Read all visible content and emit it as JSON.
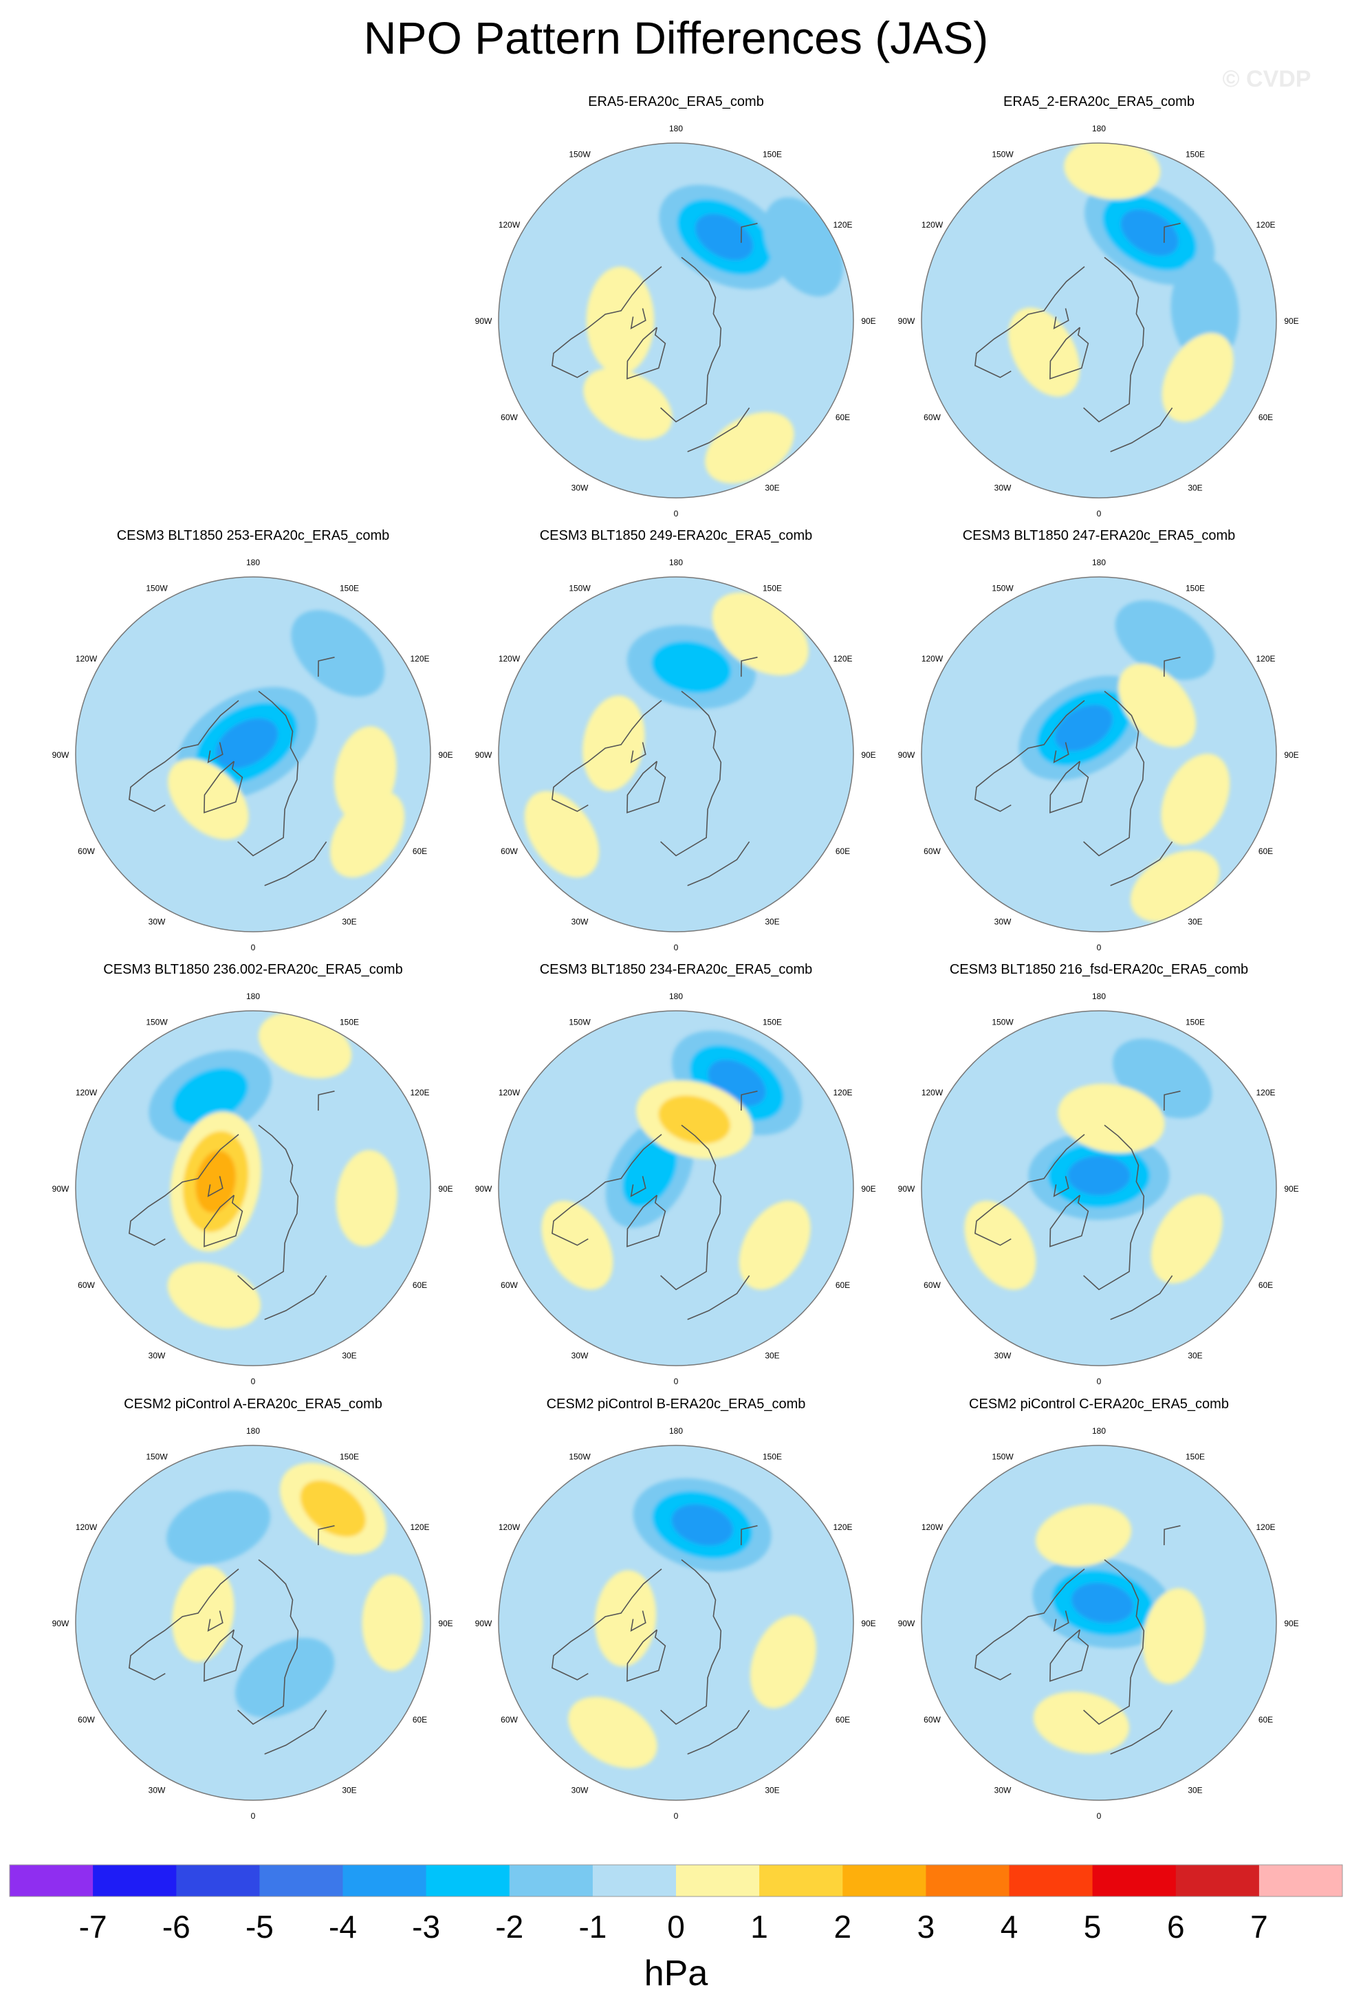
{
  "title": "NPO Pattern Differences (JAS)",
  "watermark": "© CVDP",
  "chart_data": {
    "type": "polar_contour_panels",
    "projection": "North Polar Stereographic",
    "units": "hPa",
    "longitude_labels": [
      "180",
      "150E",
      "120E",
      "90E",
      "60E",
      "30E",
      "0",
      "30W",
      "60W",
      "90W",
      "120W",
      "150W"
    ],
    "panels": [
      {
        "title": "ERA5-ERA20c_ERA5_comb",
        "row": 0,
        "col": 1,
        "features": [
          {
            "lon": 150,
            "rdeg": 38,
            "value": -3
          },
          {
            "lon": 120,
            "rdeg": 58,
            "value": -1.5
          },
          {
            "lon": -90,
            "rdeg": 22,
            "value": 1.5
          },
          {
            "lon": -30,
            "rdeg": 38,
            "value": 1
          },
          {
            "lon": 30,
            "rdeg": 58,
            "value": 1
          }
        ]
      },
      {
        "title": "ERA5_2-ERA20c_ERA5_comb",
        "row": 0,
        "col": 2,
        "features": [
          {
            "lon": 150,
            "rdeg": 40,
            "value": -3
          },
          {
            "lon": 95,
            "rdeg": 42,
            "value": -1.5
          },
          {
            "lon": -60,
            "rdeg": 25,
            "value": 1
          },
          {
            "lon": 175,
            "rdeg": 60,
            "value": 1
          },
          {
            "lon": 60,
            "rdeg": 45,
            "value": 1
          }
        ]
      },
      {
        "title": "CESM3 BLT1850 253-ERA20c_ERA5_comb",
        "row": 1,
        "col": 0,
        "features": [
          {
            "lon": -150,
            "rdeg": 5,
            "value": -3.5
          },
          {
            "lon": 140,
            "rdeg": 52,
            "value": -1.5
          },
          {
            "lon": 80,
            "rdeg": 45,
            "value": 1
          },
          {
            "lon": -45,
            "rdeg": 25,
            "value": 1
          },
          {
            "lon": 55,
            "rdeg": 55,
            "value": 1
          }
        ]
      },
      {
        "title": "CESM3 BLT1850 249-ERA20c_ERA5_comb",
        "row": 1,
        "col": 1,
        "features": [
          {
            "lon": 170,
            "rdeg": 35,
            "value": -2.5
          },
          {
            "lon": 145,
            "rdeg": 58,
            "value": 1.5
          },
          {
            "lon": -100,
            "rdeg": 25,
            "value": 1
          },
          {
            "lon": -55,
            "rdeg": 55,
            "value": 1
          }
        ]
      },
      {
        "title": "CESM3 BLT1850 247-ERA20c_ERA5_comb",
        "row": 1,
        "col": 2,
        "features": [
          {
            "lon": -150,
            "rdeg": 12,
            "value": -3
          },
          {
            "lon": 150,
            "rdeg": 52,
            "value": -1.5
          },
          {
            "lon": 130,
            "rdeg": 30,
            "value": 1
          },
          {
            "lon": 65,
            "rdeg": 42,
            "value": 1
          },
          {
            "lon": 30,
            "rdeg": 60,
            "value": 1
          }
        ]
      },
      {
        "title": "CESM3 BLT1850 236.002-ERA20c_ERA5_comb",
        "row": 2,
        "col": 0,
        "features": [
          {
            "lon": -155,
            "rdeg": 40,
            "value": -2.5
          },
          {
            "lon": -100,
            "rdeg": 15,
            "value": 3
          },
          {
            "lon": 160,
            "rdeg": 60,
            "value": 1
          },
          {
            "lon": -20,
            "rdeg": 45,
            "value": 1
          },
          {
            "lon": 85,
            "rdeg": 45,
            "value": 1
          }
        ]
      },
      {
        "title": "CESM3 BLT1850 234-ERA20c_ERA5_comb",
        "row": 2,
        "col": 1,
        "features": [
          {
            "lon": 150,
            "rdeg": 48,
            "value": -3
          },
          {
            "lon": -120,
            "rdeg": 12,
            "value": -2
          },
          {
            "lon": 165,
            "rdeg": 28,
            "value": 2
          },
          {
            "lon": -60,
            "rdeg": 45,
            "value": 1
          },
          {
            "lon": 60,
            "rdeg": 45,
            "value": 1
          }
        ]
      },
      {
        "title": "CESM3 BLT1850 216_fsd-ERA20c_ERA5_comb",
        "row": 2,
        "col": 2,
        "features": [
          {
            "lon": 180,
            "rdeg": 5,
            "value": -3
          },
          {
            "lon": 150,
            "rdeg": 50,
            "value": -1.5
          },
          {
            "lon": 170,
            "rdeg": 28,
            "value": 1.5
          },
          {
            "lon": 60,
            "rdeg": 40,
            "value": 1
          },
          {
            "lon": -60,
            "rdeg": 45,
            "value": 1
          }
        ]
      },
      {
        "title": "CESM2 piControl A-ERA20c_ERA5_comb",
        "row": 3,
        "col": 0,
        "features": [
          {
            "lon": 145,
            "rdeg": 55,
            "value": 2
          },
          {
            "lon": -160,
            "rdeg": 40,
            "value": -1.5
          },
          {
            "lon": 30,
            "rdeg": 25,
            "value": -1.5
          },
          {
            "lon": -100,
            "rdeg": 20,
            "value": 1
          },
          {
            "lon": 90,
            "rdeg": 55,
            "value": 1
          }
        ]
      },
      {
        "title": "CESM2 piControl B-ERA20c_ERA5_comb",
        "row": 3,
        "col": 1,
        "features": [
          {
            "lon": 165,
            "rdeg": 40,
            "value": -3
          },
          {
            "lon": -95,
            "rdeg": 20,
            "value": 1
          },
          {
            "lon": 70,
            "rdeg": 45,
            "value": 1
          },
          {
            "lon": -30,
            "rdeg": 50,
            "value": 1
          }
        ]
      },
      {
        "title": "CESM2 piControl C-ERA20c_ERA5_comb",
        "row": 3,
        "col": 2,
        "features": [
          {
            "lon": 170,
            "rdeg": 8,
            "value": -3
          },
          {
            "lon": -170,
            "rdeg": 35,
            "value": 1
          },
          {
            "lon": 80,
            "rdeg": 30,
            "value": 1
          },
          {
            "lon": -10,
            "rdeg": 40,
            "value": 1
          }
        ]
      }
    ],
    "colorbar": {
      "levels": [
        "-7",
        "-6",
        "-5",
        "-4",
        "-3",
        "-2",
        "-1",
        "0",
        "1",
        "2",
        "3",
        "4",
        "5",
        "6",
        "7"
      ],
      "colors": [
        "#8f2ef0",
        "#1e1cf6",
        "#2f48e6",
        "#3c78ea",
        "#1f9cf6",
        "#00c3fb",
        "#79c9f1",
        "#b4def4",
        "#fdf5a4",
        "#fed43a",
        "#feaf0c",
        "#fe7a0a",
        "#fd3e0b",
        "#e8040c",
        "#d42023",
        "#ffb5b5"
      ],
      "label": "hPa"
    }
  }
}
